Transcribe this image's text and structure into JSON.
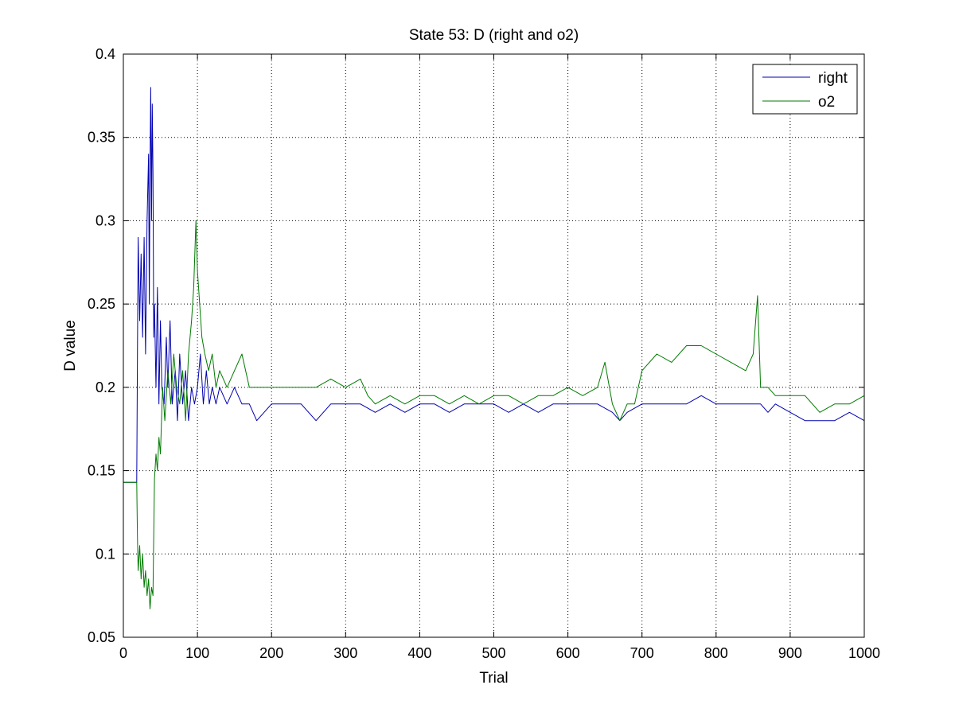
{
  "chart_data": {
    "type": "line",
    "title": "State 53: D (right and o2)",
    "xlabel": "Trial",
    "ylabel": "D value",
    "xlim": [
      0,
      1000
    ],
    "ylim": [
      0.05,
      0.4
    ],
    "xticks": [
      "0",
      "100",
      "200",
      "300",
      "400",
      "500",
      "600",
      "700",
      "800",
      "900",
      "1000"
    ],
    "yticks": [
      "0.05",
      "0.1",
      "0.15",
      "0.2",
      "0.25",
      "0.3",
      "0.35",
      "0.4"
    ],
    "grid": true,
    "legend_position": "top-right",
    "series": [
      {
        "name": "right",
        "color": "#0000b0",
        "points": [
          [
            0,
            0.143
          ],
          [
            18,
            0.143
          ],
          [
            19,
            0.22
          ],
          [
            20,
            0.29
          ],
          [
            22,
            0.24
          ],
          [
            24,
            0.28
          ],
          [
            26,
            0.23
          ],
          [
            28,
            0.29
          ],
          [
            30,
            0.22
          ],
          [
            32,
            0.3
          ],
          [
            34,
            0.34
          ],
          [
            35,
            0.25
          ],
          [
            36,
            0.33
          ],
          [
            37,
            0.38
          ],
          [
            38,
            0.3
          ],
          [
            39,
            0.37
          ],
          [
            40,
            0.33
          ],
          [
            41,
            0.23
          ],
          [
            42,
            0.25
          ],
          [
            44,
            0.2
          ],
          [
            46,
            0.26
          ],
          [
            48,
            0.19
          ],
          [
            50,
            0.24
          ],
          [
            52,
            0.2
          ],
          [
            55,
            0.19
          ],
          [
            58,
            0.23
          ],
          [
            60,
            0.2
          ],
          [
            63,
            0.24
          ],
          [
            66,
            0.19
          ],
          [
            70,
            0.21
          ],
          [
            73,
            0.18
          ],
          [
            76,
            0.22
          ],
          [
            80,
            0.19
          ],
          [
            84,
            0.21
          ],
          [
            88,
            0.18
          ],
          [
            92,
            0.2
          ],
          [
            96,
            0.19
          ],
          [
            100,
            0.2
          ],
          [
            104,
            0.22
          ],
          [
            108,
            0.19
          ],
          [
            112,
            0.21
          ],
          [
            116,
            0.19
          ],
          [
            120,
            0.2
          ],
          [
            125,
            0.19
          ],
          [
            130,
            0.2
          ],
          [
            140,
            0.19
          ],
          [
            150,
            0.2
          ],
          [
            160,
            0.19
          ],
          [
            170,
            0.19
          ],
          [
            180,
            0.18
          ],
          [
            200,
            0.19
          ],
          [
            220,
            0.19
          ],
          [
            240,
            0.19
          ],
          [
            260,
            0.18
          ],
          [
            280,
            0.19
          ],
          [
            300,
            0.19
          ],
          [
            320,
            0.19
          ],
          [
            340,
            0.185
          ],
          [
            360,
            0.19
          ],
          [
            380,
            0.185
          ],
          [
            400,
            0.19
          ],
          [
            420,
            0.19
          ],
          [
            440,
            0.185
          ],
          [
            460,
            0.19
          ],
          [
            480,
            0.19
          ],
          [
            500,
            0.19
          ],
          [
            520,
            0.185
          ],
          [
            540,
            0.19
          ],
          [
            560,
            0.185
          ],
          [
            580,
            0.19
          ],
          [
            600,
            0.19
          ],
          [
            620,
            0.19
          ],
          [
            640,
            0.19
          ],
          [
            660,
            0.185
          ],
          [
            670,
            0.18
          ],
          [
            680,
            0.185
          ],
          [
            700,
            0.19
          ],
          [
            720,
            0.19
          ],
          [
            740,
            0.19
          ],
          [
            760,
            0.19
          ],
          [
            780,
            0.195
          ],
          [
            800,
            0.19
          ],
          [
            820,
            0.19
          ],
          [
            840,
            0.19
          ],
          [
            860,
            0.19
          ],
          [
            870,
            0.185
          ],
          [
            880,
            0.19
          ],
          [
            900,
            0.185
          ],
          [
            920,
            0.18
          ],
          [
            940,
            0.18
          ],
          [
            960,
            0.18
          ],
          [
            980,
            0.185
          ],
          [
            1000,
            0.18
          ]
        ]
      },
      {
        "name": "o2",
        "color": "#007a00",
        "points": [
          [
            0,
            0.143
          ],
          [
            18,
            0.143
          ],
          [
            19,
            0.11
          ],
          [
            20,
            0.09
          ],
          [
            22,
            0.105
          ],
          [
            24,
            0.085
          ],
          [
            26,
            0.1
          ],
          [
            28,
            0.08
          ],
          [
            30,
            0.09
          ],
          [
            32,
            0.075
          ],
          [
            34,
            0.085
          ],
          [
            36,
            0.067
          ],
          [
            38,
            0.08
          ],
          [
            40,
            0.075
          ],
          [
            42,
            0.145
          ],
          [
            44,
            0.16
          ],
          [
            46,
            0.15
          ],
          [
            48,
            0.17
          ],
          [
            50,
            0.16
          ],
          [
            53,
            0.2
          ],
          [
            56,
            0.18
          ],
          [
            60,
            0.21
          ],
          [
            64,
            0.19
          ],
          [
            68,
            0.22
          ],
          [
            72,
            0.2
          ],
          [
            76,
            0.19
          ],
          [
            80,
            0.21
          ],
          [
            84,
            0.18
          ],
          [
            88,
            0.22
          ],
          [
            92,
            0.24
          ],
          [
            95,
            0.26
          ],
          [
            98,
            0.3
          ],
          [
            100,
            0.27
          ],
          [
            103,
            0.25
          ],
          [
            106,
            0.23
          ],
          [
            110,
            0.22
          ],
          [
            115,
            0.21
          ],
          [
            120,
            0.22
          ],
          [
            125,
            0.2
          ],
          [
            130,
            0.21
          ],
          [
            140,
            0.2
          ],
          [
            150,
            0.21
          ],
          [
            160,
            0.22
          ],
          [
            170,
            0.2
          ],
          [
            180,
            0.2
          ],
          [
            200,
            0.2
          ],
          [
            220,
            0.2
          ],
          [
            240,
            0.2
          ],
          [
            260,
            0.2
          ],
          [
            280,
            0.205
          ],
          [
            300,
            0.2
          ],
          [
            320,
            0.205
          ],
          [
            330,
            0.195
          ],
          [
            340,
            0.19
          ],
          [
            360,
            0.195
          ],
          [
            380,
            0.19
          ],
          [
            400,
            0.195
          ],
          [
            420,
            0.195
          ],
          [
            440,
            0.19
          ],
          [
            460,
            0.195
          ],
          [
            480,
            0.19
          ],
          [
            500,
            0.195
          ],
          [
            520,
            0.195
          ],
          [
            540,
            0.19
          ],
          [
            560,
            0.195
          ],
          [
            580,
            0.195
          ],
          [
            600,
            0.2
          ],
          [
            620,
            0.195
          ],
          [
            640,
            0.2
          ],
          [
            650,
            0.215
          ],
          [
            660,
            0.19
          ],
          [
            670,
            0.18
          ],
          [
            680,
            0.19
          ],
          [
            690,
            0.19
          ],
          [
            700,
            0.21
          ],
          [
            720,
            0.22
          ],
          [
            740,
            0.215
          ],
          [
            760,
            0.225
          ],
          [
            780,
            0.225
          ],
          [
            800,
            0.22
          ],
          [
            820,
            0.215
          ],
          [
            840,
            0.21
          ],
          [
            850,
            0.22
          ],
          [
            856,
            0.255
          ],
          [
            860,
            0.2
          ],
          [
            870,
            0.2
          ],
          [
            880,
            0.195
          ],
          [
            900,
            0.195
          ],
          [
            920,
            0.195
          ],
          [
            940,
            0.185
          ],
          [
            960,
            0.19
          ],
          [
            980,
            0.19
          ],
          [
            1000,
            0.195
          ]
        ]
      }
    ]
  }
}
